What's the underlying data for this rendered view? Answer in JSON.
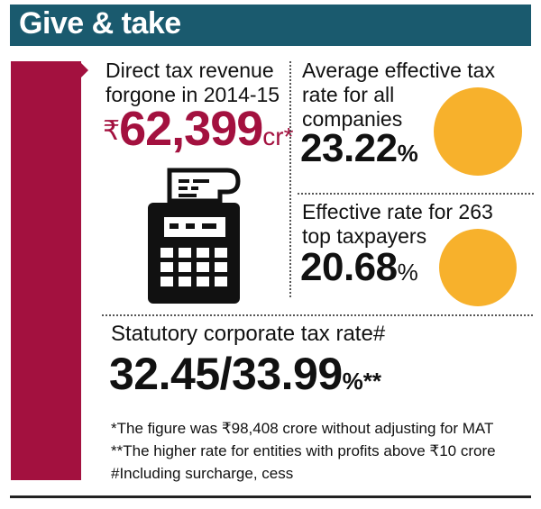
{
  "header": {
    "title": "Give & take"
  },
  "forgone": {
    "label_line1": "Direct tax revenue",
    "label_line2": "forgone in 2014-15",
    "currency": "₹",
    "value": "62,399",
    "unit": "cr*"
  },
  "avg_rate": {
    "label_line1": "Average effective tax",
    "label_line2": "rate for all",
    "label_line3": "companies",
    "value": "23.22",
    "unit": "%"
  },
  "top_rate": {
    "label_line1": "Effective rate for 263",
    "label_line2": "top taxpayers",
    "value": "20.68",
    "unit": "%"
  },
  "statutory": {
    "label": "Statutory corporate tax rate#",
    "value": "32.45/33.99",
    "unit": "%**"
  },
  "notes": [
    "*The figure was ₹98,408 crore without adjusting for MAT",
    "**The higher rate for entities with profits above ₹10 crore",
    "#Including surcharge, cess"
  ],
  "colors": {
    "header_bg": "#1a5a6e",
    "accent_red": "#a3113f",
    "circle_orange": "#f7b12c"
  },
  "icons": [
    "calculator-icon"
  ]
}
